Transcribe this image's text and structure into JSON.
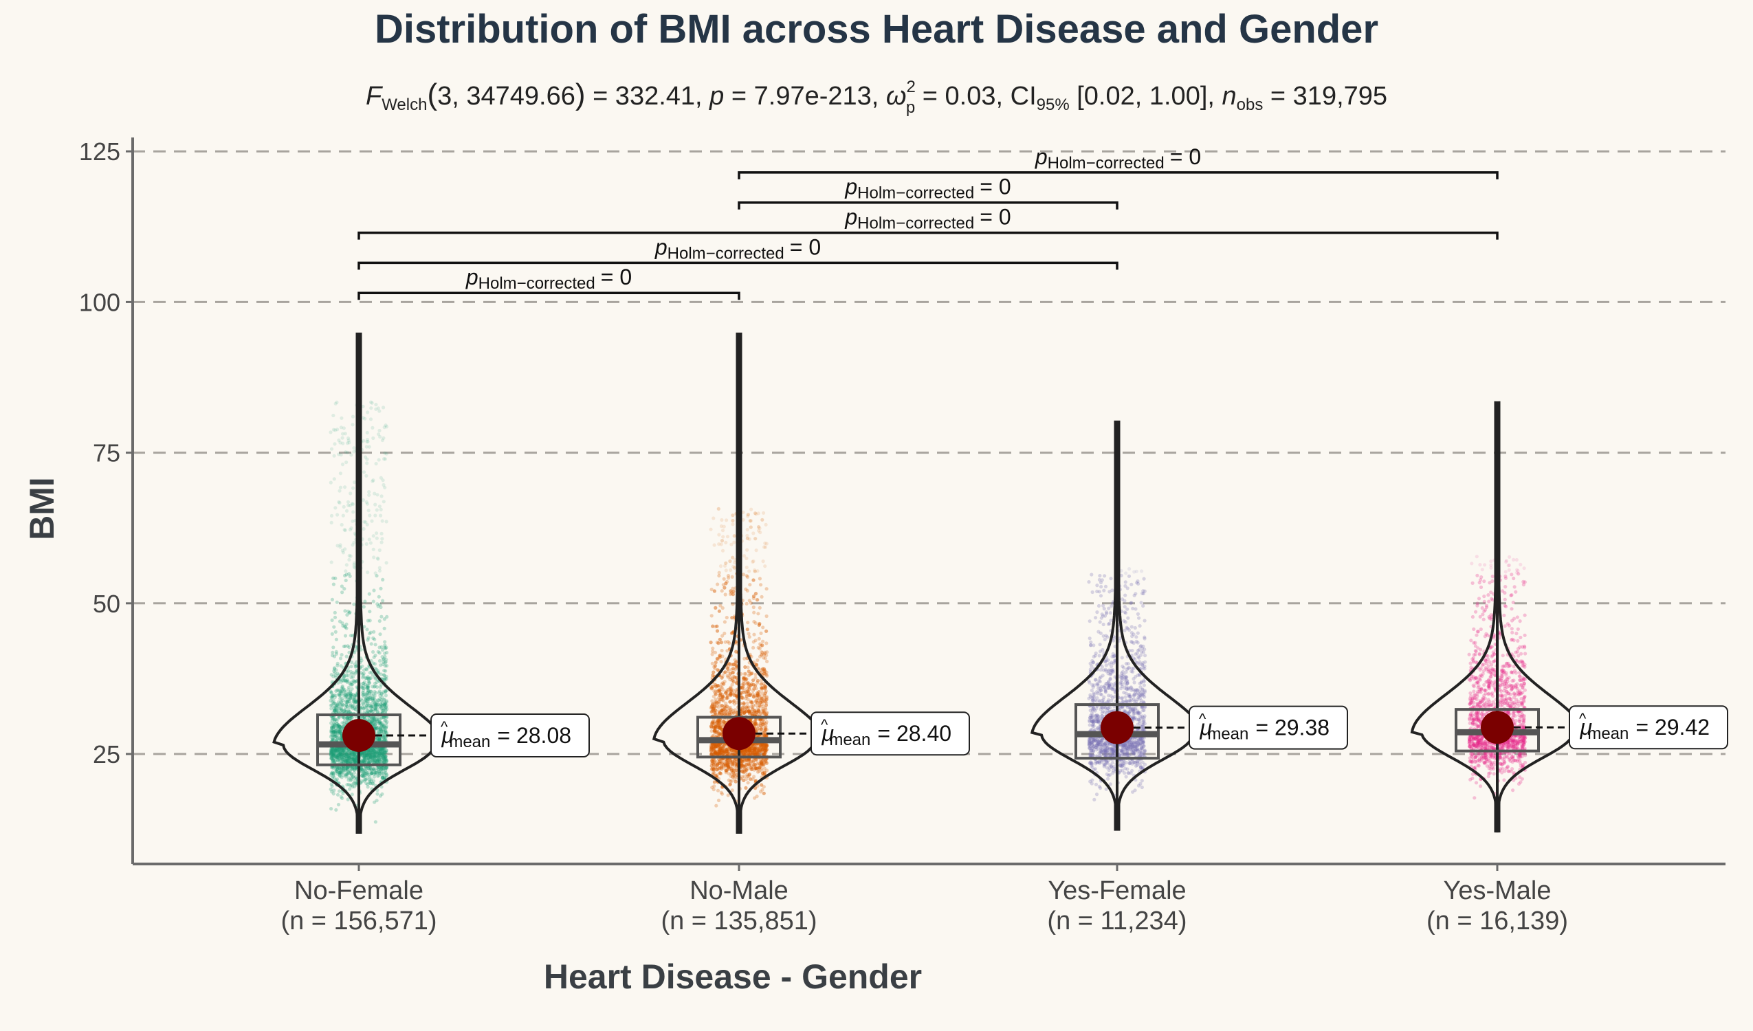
{
  "chart_data": {
    "type": "violin-box",
    "title": "Distribution of BMI across Heart Disease and Gender",
    "subtitle": {
      "stat_symbol": "F",
      "stat_sub": "Welch",
      "stat_args": "3, 34749.66",
      "stat_value": "= 332.41,",
      "p_symbol": "p",
      "p_value": "= 7.97e-213,",
      "effect_symbol": "ω",
      "effect_sup": "2",
      "effect_sub": "p",
      "effect_value": "= 0.03,",
      "ci_symbol": "CI",
      "ci_sub": "95%",
      "ci_value": "[0.02, 1.00],",
      "n_symbol": "n",
      "n_sub": "obs",
      "n_value": "= 319,795"
    },
    "xlabel": "Heart Disease - Gender",
    "ylabel": "BMI",
    "ylim": [
      7,
      127
    ],
    "yticks": [
      25,
      50,
      75,
      100,
      125
    ],
    "grid": "horizontal-dashed",
    "categories": [
      {
        "name": "No-Female",
        "n_label": "(n = 156,571)",
        "color": "#1b9e77",
        "mean": 28.08,
        "mean_label": "= 28.08",
        "q1": 23.2,
        "median": 26.6,
        "q3": 31.5,
        "whisker_low": 12.0,
        "whisker_high": 94.7,
        "jitter_high": 84
      },
      {
        "name": "No-Male",
        "n_label": "(n = 135,851)",
        "color": "#d95f02",
        "mean": 28.4,
        "mean_label": "= 28.40",
        "q1": 24.5,
        "median": 27.3,
        "q3": 31.1,
        "whisker_low": 12.0,
        "whisker_high": 94.7,
        "jitter_high": 66
      },
      {
        "name": "Yes-Female",
        "n_label": "(n = 11,234)",
        "color": "#7570b3",
        "mean": 29.38,
        "mean_label": "= 29.38",
        "q1": 24.3,
        "median": 28.3,
        "q3": 33.2,
        "whisker_low": 12.5,
        "whisker_high": 80.1,
        "jitter_high": 56
      },
      {
        "name": "Yes-Male",
        "n_label": "(n = 16,139)",
        "color": "#e7298a",
        "mean": 29.42,
        "mean_label": "= 29.42",
        "q1": 25.5,
        "median": 28.6,
        "q3": 32.4,
        "whisker_low": 12.2,
        "whisker_high": 83.3,
        "jitter_high": 58
      }
    ],
    "mean_symbol": "μ",
    "mean_sub": "mean",
    "comparisons": [
      {
        "from": 0,
        "to": 1,
        "y": 101.5,
        "p_symbol": "p",
        "p_sub": "Holm−corrected",
        "p_value": "= 0"
      },
      {
        "from": 0,
        "to": 2,
        "y": 106.5,
        "p_symbol": "p",
        "p_sub": "Holm−corrected",
        "p_value": "= 0"
      },
      {
        "from": 0,
        "to": 3,
        "y": 111.5,
        "p_symbol": "p",
        "p_sub": "Holm−corrected",
        "p_value": "= 0"
      },
      {
        "from": 1,
        "to": 2,
        "y": 116.5,
        "p_symbol": "p",
        "p_sub": "Holm−corrected",
        "p_value": "= 0"
      },
      {
        "from": 1,
        "to": 3,
        "y": 121.5,
        "p_symbol": "p",
        "p_sub": "Holm−corrected",
        "p_value": "= 0"
      }
    ],
    "colors": {
      "mean_point": "#7a0000",
      "box": "#555555",
      "violin": "#222222",
      "grid": "#a8a49e",
      "axis": "#6b6b6b"
    }
  }
}
